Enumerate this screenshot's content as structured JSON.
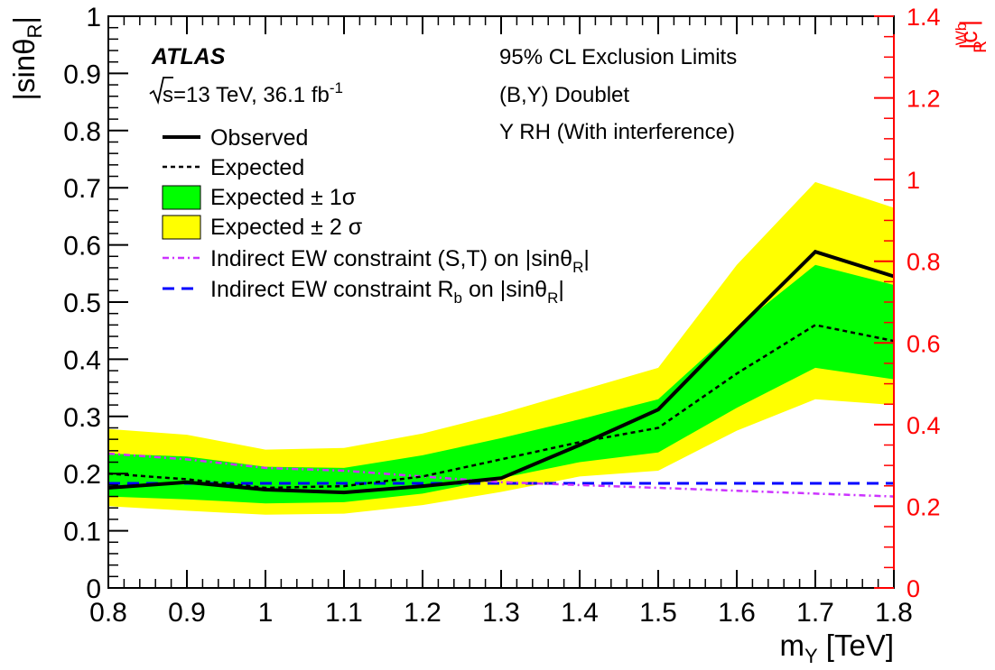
{
  "chart_data": {
    "type": "line",
    "x": [
      0.8,
      0.9,
      1.0,
      1.1,
      1.2,
      1.3,
      1.4,
      1.5,
      1.6,
      1.7,
      1.8
    ],
    "xlim": [
      0.8,
      1.8
    ],
    "ylim": [
      0,
      1
    ],
    "y2lim": [
      0,
      1.4
    ],
    "xticks": [
      "0.8",
      "0.9",
      "1",
      "1.1",
      "1.2",
      "1.3",
      "1.4",
      "1.5",
      "1.6",
      "1.7",
      "1.8"
    ],
    "yticks": [
      "0",
      "0.1",
      "0.2",
      "0.3",
      "0.4",
      "0.5",
      "0.6",
      "0.7",
      "0.8",
      "0.9",
      "1"
    ],
    "y2ticks": [
      "0",
      "0.2",
      "0.4",
      "0.6",
      "0.8",
      "1",
      "1.2",
      "1.4"
    ],
    "xlabel_main": "m",
    "xlabel_sub": "Y",
    "xlabel_unit": " [TeV]",
    "ylabel_main": "|sinθ",
    "ylabel_sub": "R",
    "ylabel_end": "|",
    "y2label_main": "|c",
    "y2label_sup": "Wb",
    "y2label_sub": "R",
    "y2label_end": "|",
    "colors": {
      "observed": "#000000",
      "expected": "#000000",
      "band1": "#00ff00",
      "band2": "#ffff00",
      "st": "#cc33ff",
      "rb": "#0000ff",
      "right_axis": "#ff0000"
    },
    "series": [
      {
        "key": "band2",
        "upper": [
          0.278,
          0.268,
          0.242,
          0.245,
          0.27,
          0.305,
          0.345,
          0.385,
          0.565,
          0.71,
          0.665
        ],
        "lower": [
          0.143,
          0.135,
          0.128,
          0.13,
          0.145,
          0.168,
          0.195,
          0.205,
          0.275,
          0.33,
          0.32
        ]
      },
      {
        "key": "band1",
        "upper": [
          0.235,
          0.23,
          0.212,
          0.21,
          0.232,
          0.262,
          0.295,
          0.33,
          0.455,
          0.565,
          0.53
        ],
        "lower": [
          0.16,
          0.155,
          0.148,
          0.15,
          0.165,
          0.192,
          0.22,
          0.237,
          0.315,
          0.385,
          0.365
        ]
      },
      {
        "key": "expected",
        "values": [
          0.2,
          0.19,
          0.175,
          0.178,
          0.195,
          0.225,
          0.255,
          0.28,
          0.375,
          0.46,
          0.432
        ]
      },
      {
        "key": "observed",
        "values": [
          0.175,
          0.185,
          0.172,
          0.167,
          0.178,
          0.192,
          0.25,
          0.312,
          0.452,
          0.588,
          0.545
        ]
      },
      {
        "key": "st",
        "values": [
          0.235,
          0.225,
          0.21,
          0.205,
          0.195,
          0.185,
          0.18,
          0.175,
          0.17,
          0.165,
          0.16
        ]
      },
      {
        "key": "rb",
        "values": [
          0.183,
          0.183,
          0.183,
          0.183,
          0.183,
          0.183,
          0.183,
          0.183,
          0.183,
          0.183,
          0.183
        ]
      }
    ],
    "experiment": "ATLAS",
    "energy_text": "s=13 TeV,  36.1 fb",
    "energy_sup": "-1",
    "annotations": [
      "95% CL Exclusion Limits",
      "(B,Y) Doublet",
      "Y RH (With interference)"
    ],
    "legend": {
      "observed": "Observed",
      "expected": "Expected",
      "band1": "Expected ± 1σ",
      "band2": "Expected ± 2 σ",
      "st_main": "Indirect EW constraint (S,T) on |sinθ",
      "st_sub": "R",
      "st_end": "|",
      "rb_main": "Indirect EW constraint R",
      "rb_sub": "b",
      "rb_mid": " on |sinθ",
      "rb_sub2": "R",
      "rb_end": "|"
    }
  }
}
